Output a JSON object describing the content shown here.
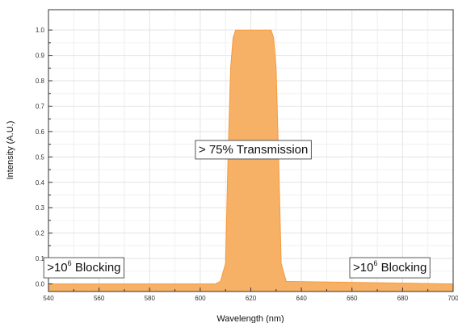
{
  "chart_data": {
    "type": "area",
    "xlabel": "Wavelength (nm)",
    "ylabel": "Intensity (A.U.)",
    "xlim": [
      540,
      700
    ],
    "ylim": [
      -0.03,
      1.08
    ],
    "xticks": [
      540,
      560,
      580,
      600,
      620,
      640,
      660,
      680,
      700
    ],
    "yticks": [
      0.0,
      0.1,
      0.2,
      0.3,
      0.4,
      0.5,
      0.6,
      0.7,
      0.8,
      0.9,
      1.0
    ],
    "xtick_labels": [
      "540",
      "560",
      "580",
      "600",
      "620",
      "640",
      "660",
      "680",
      "700"
    ],
    "ytick_labels": [
      "0.0",
      "0.1",
      "0.2",
      "0.3",
      "0.4",
      "0.5",
      "0.6",
      "0.7",
      "0.8",
      "0.9",
      "1.0"
    ],
    "grid": true,
    "fill_color": "#f7b167",
    "line_color": "#f59a3a",
    "series": [
      {
        "x": [
          540,
          606,
          608,
          610,
          611,
          612,
          613,
          614,
          628,
          629,
          630,
          631,
          632,
          634,
          700
        ],
        "values": [
          0.0,
          0.0,
          0.01,
          0.08,
          0.5,
          0.85,
          0.97,
          1.0,
          1.0,
          0.97,
          0.85,
          0.5,
          0.08,
          0.01,
          0.0
        ]
      }
    ],
    "annotations": [
      {
        "base": "> 75% Transmission",
        "sup": "",
        "after": "",
        "x": 621,
        "y": 0.53
      },
      {
        "base": ">10",
        "sup": "6",
        "after": " Blocking",
        "x": 554,
        "y": 0.065
      },
      {
        "base": ">10",
        "sup": "6",
        "after": " Blocking",
        "x": 675,
        "y": 0.065
      }
    ]
  }
}
